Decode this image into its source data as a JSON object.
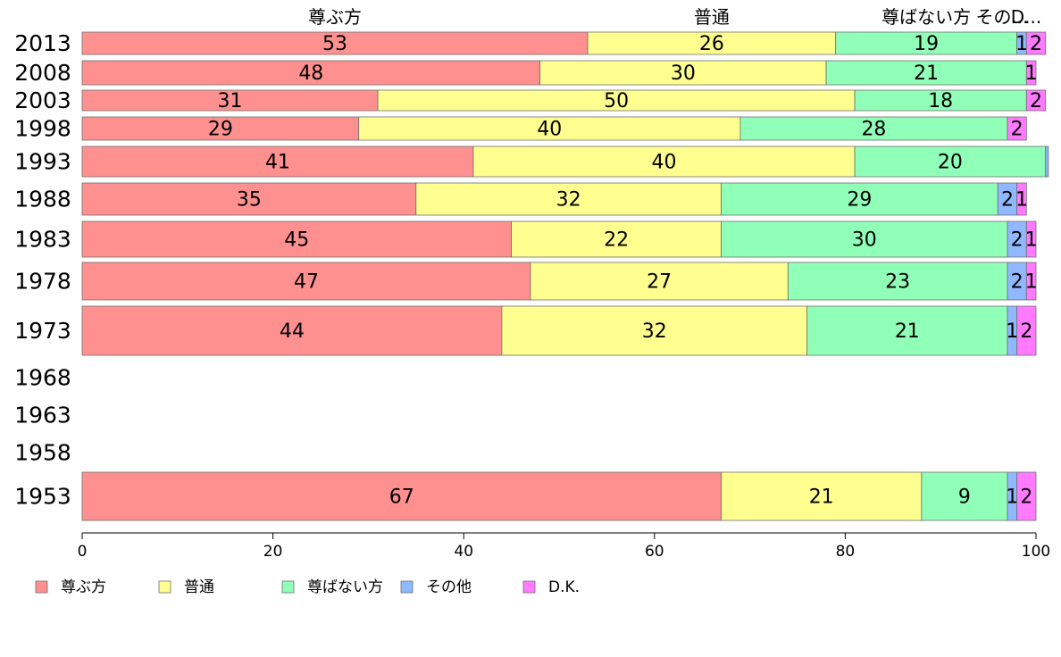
{
  "chart_data": {
    "type": "bar",
    "orientation": "horizontal",
    "stacked": true,
    "xlim": [
      0,
      100
    ],
    "x_ticks": [
      "0",
      "20",
      "40",
      "60",
      "80",
      "100"
    ],
    "top_labels": [
      "尊ぶ方",
      "普通",
      "尊ばない方",
      "その...",
      "D..."
    ],
    "legend_position": "bottom",
    "series": [
      {
        "name": "尊ぶ方",
        "color": "#FF9090"
      },
      {
        "name": "普通",
        "color": "#FFFF90"
      },
      {
        "name": "尊ばない方",
        "color": "#90FFB8"
      },
      {
        "name": "その他",
        "color": "#90B8FF"
      },
      {
        "name": "D.K.",
        "color": "#FF7AFF"
      }
    ],
    "rows": [
      {
        "year": "2013",
        "values": [
          53,
          26,
          19,
          1,
          2
        ],
        "labels": [
          "53",
          "26",
          "19",
          "1",
          "2"
        ]
      },
      {
        "year": "2008",
        "values": [
          48,
          30,
          21,
          0,
          1
        ],
        "labels": [
          "48",
          "30",
          "21",
          "",
          "1"
        ]
      },
      {
        "year": "2003",
        "values": [
          31,
          50,
          18,
          0,
          2
        ],
        "labels": [
          "31",
          "50",
          "18",
          "",
          "2"
        ]
      },
      {
        "year": "1998",
        "values": [
          29,
          40,
          28,
          0,
          2
        ],
        "labels": [
          "29",
          "40",
          "28",
          "",
          "2"
        ]
      },
      {
        "year": "1993",
        "values": [
          41,
          40,
          20,
          0.3,
          0
        ],
        "labels": [
          "41",
          "40",
          "20",
          "",
          ""
        ]
      },
      {
        "year": "1988",
        "values": [
          35,
          32,
          29,
          2,
          1
        ],
        "labels": [
          "35",
          "32",
          "29",
          "2",
          "1"
        ]
      },
      {
        "year": "1983",
        "values": [
          45,
          22,
          30,
          2,
          1
        ],
        "labels": [
          "45",
          "22",
          "30",
          "2",
          "1"
        ]
      },
      {
        "year": "1978",
        "values": [
          47,
          27,
          23,
          2,
          1
        ],
        "labels": [
          "47",
          "27",
          "23",
          "2",
          "1"
        ]
      },
      {
        "year": "1973",
        "values": [
          44,
          32,
          21,
          1,
          2
        ],
        "labels": [
          "44",
          "32",
          "21",
          "1",
          "2"
        ]
      },
      {
        "year": "1968",
        "values": [],
        "labels": []
      },
      {
        "year": "1963",
        "values": [],
        "labels": []
      },
      {
        "year": "1958",
        "values": [],
        "labels": []
      },
      {
        "year": "1953",
        "values": [
          67,
          21,
          9,
          1,
          2
        ],
        "labels": [
          "67",
          "21",
          "9",
          "1",
          "2"
        ]
      }
    ]
  }
}
